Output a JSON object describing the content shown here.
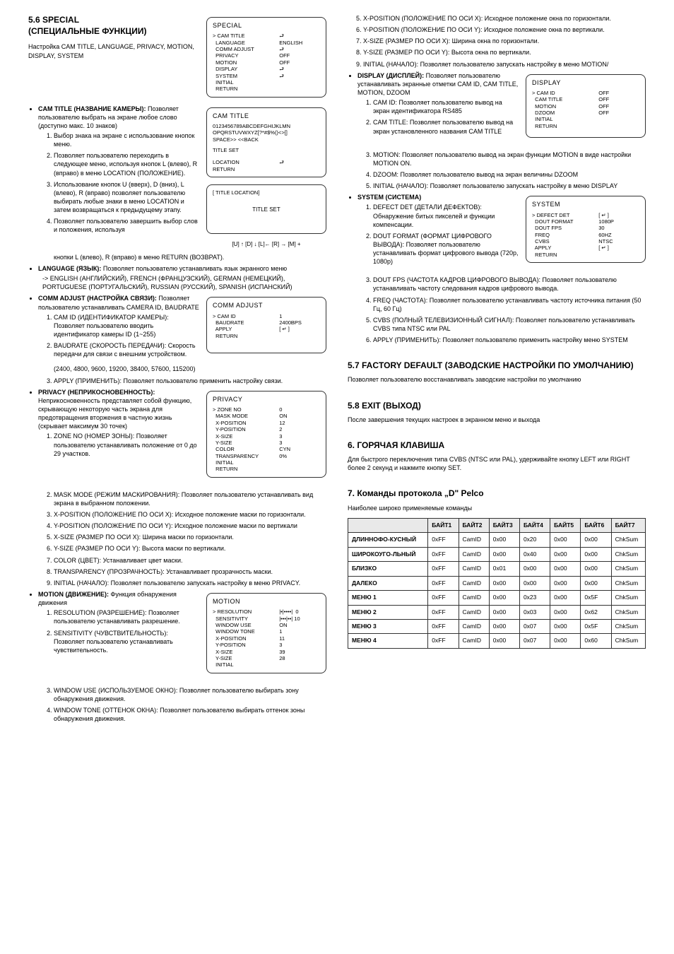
{
  "left": {
    "h2a": "5.6  SPECIAL",
    "h2b": "(СПЕЦИАЛЬНЫЕ ФУНКЦИИ)",
    "intro": "Настройка CAM TITLE, LANGUAGE, PRIVACY, MOTION, DISPLAY, SYSTEM",
    "mbSpecial": {
      "title": "SPECIAL",
      "rows": [
        [
          "> CAM TITLE",
          "⮐"
        ],
        [
          "  LANGUAGE",
          "ENGLISH"
        ],
        [
          "  COMM ADJUST",
          "⮐"
        ],
        [
          "  PRIVACY",
          "OFF"
        ],
        [
          "  MOTION",
          "OFF"
        ],
        [
          "  DISPLAY",
          "⮐"
        ],
        [
          "  SYSTEM",
          "⮐"
        ],
        [
          "  INITIAL",
          ""
        ],
        [
          "  RETURN",
          ""
        ]
      ]
    },
    "camTitle": {
      "lead": "CAM TITLE (НАЗВАНИЕ КАМЕРЫ):",
      "body1": "Позволяет пользователю выбрать на экране любое слово",
      "body2": "(доступно макс. 10 знаков)",
      "li1": "Выбор знака на экране с использование кнопок меню.",
      "li2": "Позволяет пользователю переходить в следующее меню, используя кнопок L (влево), R (вправо) в меню LOCATION (ПОЛОЖЕНИЕ).",
      "li3": "Использование кнопок U (вверх), D (вниз), L (влево), R (вправо) позволяет пользователю выбирать любые знаки в меню LOCATION и затем возвращаться к предыдущему этапу.",
      "li4a": "Позволяет пользователю завершить выбор слов и положения, используя",
      "li4b": "кнопки L (влево), R (вправо) в меню RETURN (ВОЗВРАТ)."
    },
    "mbCamTitle": {
      "title": "CAM TITLE",
      "line1": "0123456789ABCDEFGHIJKLMN",
      "line2": "OPQRSTUVWXYZ[?*#$%()<>[]",
      "line3": "SPACE>>  <<BACK",
      "titleset": "TITLE SET",
      "loc": "LOCATION",
      "ret": "RETURN",
      "locv": "⮐"
    },
    "mbTitleLoc": {
      "title": "[ TITLE LOCATION]",
      "center": "TITLE SET",
      "hint": "[U] ↑  [D] ↓  [L]←  [R] →  [M] +"
    },
    "language": {
      "lead": "LANGUAGE (ЯЗЫК):",
      "body": "Позволяет пользователю устанавливать язык экранного меню",
      "arrow": "-> ENGLISH (АНГЛИЙСКИЙ), FRENCH (ФРАНЦУЗСКИЙ), GERMAN (НЕМЕЦКИЙ), PORTUGUESE (ПОРТУГАЛЬСКИЙ), RUSSIAN (РУССКИЙ), SPANISH (ИСПАНСКИЙ)"
    },
    "comm": {
      "lead": "COMM ADJUST (НАСТРОЙКА СВЯЗИ):",
      "body": "Позволяет пользователю устанавливать CAMERA ID, BAUDRATE",
      "li1": "CAM ID (ИДЕНТИФИКАТОР КАМЕРЫ): Позволяет пользователю вводить идентификатор камеры ID (1~255)",
      "li2": "BAUDRATE (СКОРОСТЬ ПЕРЕДАЧИ): Скорость передачи для связи с внешним устройством.",
      "li2b": "(2400, 4800, 9600, 19200, 38400, 57600, 115200)",
      "li3": "APPLY (ПРИМЕНИТЬ): Позволяет пользователю применить настройку связи."
    },
    "mbComm": {
      "title": "COMM ADJUST",
      "rows": [
        [
          "> CAM ID",
          "1"
        ],
        [
          "  BAUDRATE",
          "2400BPS"
        ],
        [
          "  APPLY",
          "[ ↵ ]"
        ],
        [
          "  RETURN",
          ""
        ]
      ]
    },
    "privacy": {
      "lead": "PRIVACY (НЕПРИКОСНОВЕННОСТЬ):",
      "body1": "Неприкосновенность представляет собой функцию, скрывающую некоторую часть экрана для предотвращения вторжения в частную жизнь",
      "body2": "(скрывает максимум 30 точек)",
      "li1": "ZONE NO (НОМЕР ЗОНЫ): Позволяет пользователю устанавливать положение от 0 до 29 участков.",
      "li2": "MASK MODE (РЕЖИМ МАСКИРОВАНИЯ): Позволяет пользователю устанавливать вид экрана в выбранном положении.",
      "li3": "X-POSITION (ПОЛОЖЕНИЕ ПО ОСИ X): Исходное положение маски по горизонтали.",
      "li4": "Y-POSITION (ПОЛОЖЕНИЕ ПО ОСИ Y): Исходное положение маски по вертикали",
      "li5": "X-SIZE (РАЗМЕР ПО ОСИ X): Ширина маски по горизонтали.",
      "li6": "Y-SIZE (РАЗМЕР ПО ОСИ Y): Высота маски по вертикали.",
      "li7": "COLOR (ЦВЕТ): Устанавливает цвет маски.",
      "li8": "TRANSPARENCY (ПРОЗРАЧНОСТЬ): Устанавливает прозрачность маски.",
      "li9": "INITIAL (НАЧАЛО): Позволяет пользователю запускать настройку в меню PRIVACY."
    },
    "mbPriv": {
      "title": "PRIVACY",
      "rows": [
        [
          "> ZONE NO",
          "0"
        ],
        [
          "  MASK MODE",
          "ON"
        ],
        [
          "  X-POSITION",
          "12"
        ],
        [
          "  Y-POSITION",
          "2"
        ],
        [
          "  X-SIZE",
          "3"
        ],
        [
          "  Y-SIZE",
          "3"
        ],
        [
          "  COLOR",
          "CYN"
        ],
        [
          "  TRANSPARENCY",
          "0%"
        ],
        [
          "  INITIAL",
          ""
        ],
        [
          "  RETURN",
          ""
        ]
      ]
    },
    "motion": {
      "lead": "MOTION (ДВИЖЕНИЕ):",
      "body": "Функция обнаружения движения",
      "li1": "RESOLUTION (РАЗРЕШЕНИЕ): Позволяет пользователю устанавливать разрешение.",
      "li2": "SENSITIVITY (ЧУВСТВИТЕЛЬНОСТЬ): Позволяет пользователю устанавливать чувствительность.",
      "li3": "WINDOW USE (ИСПОЛЬЗУЕМОЕ ОКНО): Позволяет пользователю выбирать зону обнаружения движения.",
      "li4": "WINDOW TONE (ОТТЕНОК ОКНА): Позволяет пользователю выбирать оттенок зоны обнаружения движения."
    },
    "mbMotion": {
      "title": "MOTION",
      "rows": [
        [
          "> RESOLUTION",
          "|•|••••|  0"
        ],
        [
          "  SENSITIVITY",
          "|•••|••| 10"
        ],
        [
          "  WINDOW USE",
          "ON"
        ],
        [
          "  WINDOW TONE",
          "1"
        ],
        [
          "  X-POSITION",
          "11"
        ],
        [
          "  Y-POSITION",
          "3"
        ],
        [
          "  X-SIZE",
          "39"
        ],
        [
          "  Y-SIZE",
          "28"
        ],
        [
          "  INITIAL",
          ""
        ]
      ]
    }
  },
  "right": {
    "motionCont": {
      "li5": "X-POSITION (ПОЛОЖЕНИЕ ПО ОСИ X): Исходное положение окна по горизонтали.",
      "li6": "Y-POSITION (ПОЛОЖЕНИЕ ПО ОСИ Y): Исходное положение окна по вертикали.",
      "li7": "X-SIZE (РАЗМЕР ПО ОСИ X): Ширина окна по горизонтали.",
      "li8": "Y-SIZE (РАЗМЕР ПО ОСИ Y): Высота окна по вертикали.",
      "li9": "INITIAL (НАЧАЛО): Позволяет пользователю запускать настройку в меню MOTION/"
    },
    "display": {
      "lead": "DISPLAY (ДИСПЛЕЙ):",
      "body": "Позволяет пользователю устанавливать экранные отметки CAM ID, CAM TITLE, MOTION, DZOOM",
      "li1": "CAM ID: Позволяет пользователю вывод на экран идентификатора RS485",
      "li2": "CAM TITLE: Позволяет пользователю вывод на экран установленного названия CAM TITLE",
      "li3": "MOTION: Позволяет пользователю вывод на экран функции MOTION в виде настройки MOTION ON.",
      "li4": "DZOOM: Позволяет пользователю вывод на экран величины DZOOM",
      "li5": "INITIAL (НАЧАЛО): Позволяет пользователю запускать настройку в меню DISPLAY"
    },
    "mbDisplay": {
      "title": "DISPLAY",
      "rows": [
        [
          "> CAM ID",
          "OFF"
        ],
        [
          "  CAM TITLE",
          "OFF"
        ],
        [
          "  MOTION",
          "OFF"
        ],
        [
          "  DZOOM",
          "OFF"
        ],
        [
          "  INITIAL",
          ""
        ],
        [
          "  RETURN",
          ""
        ]
      ]
    },
    "system": {
      "lead": "SYSTEM (СИСТЕМА)",
      "li1": "DEFECT DET (ДЕТАЛИ ДЕФЕКТОВ): Обнаружение битых пикселей и функции компенсации.",
      "li2": "DOUT FORMAT (ФОРМАТ ЦИФРОВОГО ВЫВОДА): Позволяет пользователю устанавливать формат цифрового вывода (720p, 1080p)",
      "li3": "DOUT FPS (ЧАСТОТА КАДРОВ ЦИФРОВОГО ВЫВОДА): Позволяет пользователю устанавливать частоту следования кадров цифрового вывода.",
      "li4": "FREQ (ЧАСТОТА): Позволяет пользователю устанавливать частоту источника питания (50 Гц, 60 Гц)",
      "li5": "CVBS (ПОЛНЫЙ ТЕЛЕВИЗИОННЫЙ СИГНАЛ): Позволяет пользователю устанавливать CVBS типа NTSC или PAL",
      "li6": "APPLY (ПРИМЕНИТЬ): Позволяет пользователю применить настройку меню SYSTEM"
    },
    "mbSystem": {
      "title": "SYSTEM",
      "rows": [
        [
          "> DEFECT DET",
          "[ ↵ ]"
        ],
        [
          "  DOUT FORMAT",
          "1080P"
        ],
        [
          "  DOUT FPS",
          "30"
        ],
        [
          "  FREQ",
          "60HZ"
        ],
        [
          "  CVBS",
          "NTSC"
        ],
        [
          "  APPLY",
          "[ ↵ ]"
        ],
        [
          "  RETURN",
          ""
        ]
      ]
    },
    "s57h": "5.7  FACTORY DEFAULT (ЗАВОДСКИЕ НАСТРОЙКИ ПО УМОЛЧАНИЮ)",
    "s57p": "Позволяет пользователю восстанавливать заводские настройки по умолчанию",
    "s58h": "5.8  EXIT (ВЫХОД)",
    "s58p": "После завершения текущих настроек в экранном меню и выхода",
    "s6h": "6.  ГОРЯЧАЯ КЛАВИША",
    "s6p": "Для быстрого переключения типа CVBS (NTSC или PAL), удерживайте кнопку LEFT или RIGHT более 2 секунд и нажмите кнопку SET.",
    "s7h": "7.  Команды протокола „D\" Pelco",
    "s7p": "Наиболее широко применяемые команды",
    "table": {
      "headers": [
        "",
        "БАЙТ1",
        "БАЙТ2",
        "БАЙТ3",
        "БАЙТ4",
        "БАЙТ5",
        "БАЙТ6",
        "БАЙТ7"
      ],
      "rows": [
        [
          "ДЛИННОФО-КУСНЫЙ",
          "0xFF",
          "CamID",
          "0x00",
          "0x20",
          "0x00",
          "0x00",
          "ChkSum"
        ],
        [
          "ШИРОКОУГО-ЛЬНЫЙ",
          "0xFF",
          "CamID",
          "0x00",
          "0x40",
          "0x00",
          "0x00",
          "ChkSum"
        ],
        [
          "БЛИЗКО",
          "0xFF",
          "CamID",
          "0x01",
          "0x00",
          "0x00",
          "0x00",
          "ChkSum"
        ],
        [
          "ДАЛЕКО",
          "0xFF",
          "CamID",
          "0x00",
          "0x00",
          "0x00",
          "0x00",
          "ChkSum"
        ],
        [
          "МЕНЮ 1",
          "0xFF",
          "CamID",
          "0x00",
          "0x23",
          "0x00",
          "0x5F",
          "ChkSum"
        ],
        [
          "МЕНЮ 2",
          "0xFF",
          "CamID",
          "0x00",
          "0x03",
          "0x00",
          "0x62",
          "ChkSum"
        ],
        [
          "МЕНЮ 3",
          "0xFF",
          "CamID",
          "0x00",
          "0x07",
          "0x00",
          "0x5F",
          "ChkSum"
        ],
        [
          "МЕНЮ 4",
          "0xFF",
          "CamID",
          "0x00",
          "0x07",
          "0x00",
          "0x60",
          "ChkSum"
        ]
      ]
    }
  }
}
